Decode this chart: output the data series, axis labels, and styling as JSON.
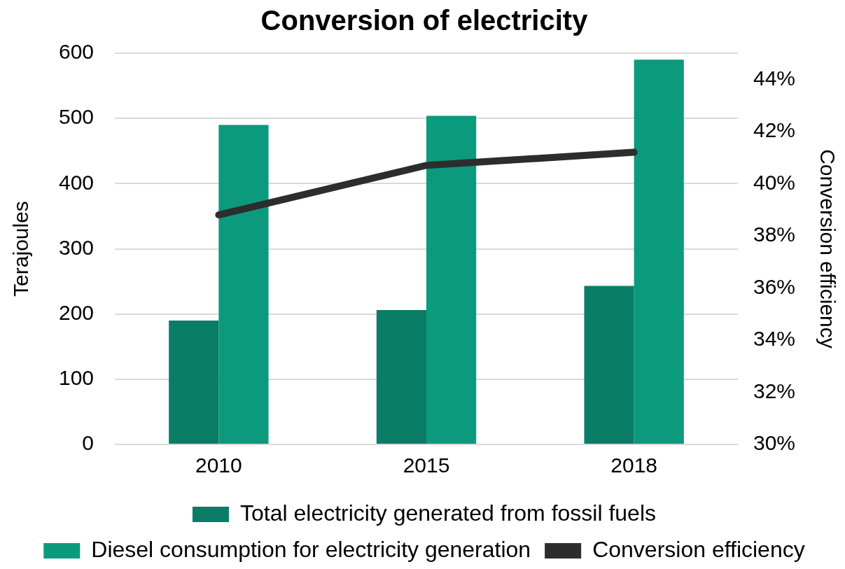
{
  "chart_data": {
    "type": "bar",
    "title": "Conversion of electricity",
    "ylabel": "Terajoules",
    "y2label": "Conversion efficiency",
    "categories": [
      "2010",
      "2015",
      "2018"
    ],
    "series": [
      {
        "name": "Total electricity generated from fossil fuels",
        "color": "#0a7d66",
        "values": [
          190,
          206,
          243
        ]
      },
      {
        "name": "Diesel consumption for electricity generation",
        "color": "#0b9a7e",
        "values": [
          490,
          504,
          590
        ]
      },
      {
        "name": "Conversion efficiency",
        "type": "line",
        "axis": "y2",
        "color": "#2d2d2d",
        "values": [
          38.8,
          40.7,
          41.2
        ]
      }
    ],
    "ylim": [
      0,
      600
    ],
    "yticks": [
      0,
      100,
      200,
      300,
      400,
      500,
      600
    ],
    "y2lim": [
      30,
      45
    ],
    "y2ticks": [
      {
        "value": 30,
        "label": "30%"
      },
      {
        "value": 32,
        "label": "32%"
      },
      {
        "value": 34,
        "label": "34%"
      },
      {
        "value": 36,
        "label": "36%"
      },
      {
        "value": 38,
        "label": "38%"
      },
      {
        "value": 40,
        "label": "40%"
      },
      {
        "value": 42,
        "label": "42%"
      },
      {
        "value": 44,
        "label": "44%"
      }
    ],
    "grid": "y",
    "legend": "bottom",
    "marker": "none"
  }
}
